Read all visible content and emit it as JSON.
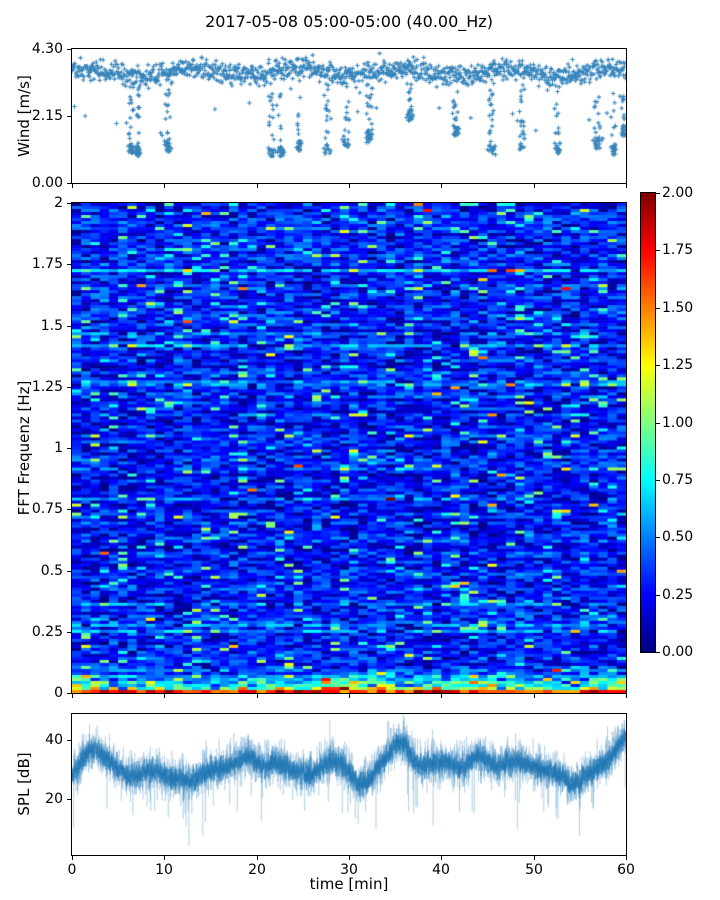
{
  "title": "2017-05-08 05:00-05:00 (40.00_Hz)",
  "xlabel": "time [min]",
  "xlim": [
    0,
    60
  ],
  "xticks": [
    0,
    10,
    20,
    30,
    40,
    50,
    60
  ],
  "xtick_labels": [
    "0",
    "10",
    "20",
    "30",
    "40",
    "50",
    "60"
  ],
  "accent_color": "#1f77b4",
  "spine_color": "#000000",
  "chart_data": [
    {
      "id": "wind",
      "type": "scatter",
      "ylabel": "Wind [m/s]",
      "ylim": [
        0.0,
        4.3
      ],
      "yticks": [
        0.0,
        2.15,
        4.3
      ],
      "ytick_labels": [
        "0.00",
        "2.15",
        "4.30"
      ],
      "marker": "+",
      "color": "#1f77b4",
      "band_mean": 3.55,
      "band_sd": 0.17,
      "band_wave_amp": 0.12,
      "points_per_min": 20,
      "straggler_prob": 0.035,
      "dips": [
        {
          "t": 6.4,
          "min": 0.95,
          "w": 0.45
        },
        {
          "t": 7.15,
          "min": 0.85,
          "w": 0.3
        },
        {
          "t": 10.4,
          "min": 1.0,
          "w": 0.4
        },
        {
          "t": 21.6,
          "min": 0.85,
          "w": 0.5
        },
        {
          "t": 22.6,
          "min": 0.8,
          "w": 0.45
        },
        {
          "t": 24.6,
          "min": 1.0,
          "w": 0.3
        },
        {
          "t": 27.6,
          "min": 0.9,
          "w": 0.35
        },
        {
          "t": 29.7,
          "min": 1.1,
          "w": 0.35
        },
        {
          "t": 32.3,
          "min": 1.3,
          "w": 0.4
        },
        {
          "t": 36.6,
          "min": 2.0,
          "w": 0.3
        },
        {
          "t": 41.6,
          "min": 1.5,
          "w": 0.35
        },
        {
          "t": 45.4,
          "min": 0.9,
          "w": 0.45
        },
        {
          "t": 48.7,
          "min": 1.0,
          "w": 0.35
        },
        {
          "t": 52.6,
          "min": 0.95,
          "w": 0.4
        },
        {
          "t": 56.9,
          "min": 1.1,
          "w": 0.5
        },
        {
          "t": 58.7,
          "min": 0.9,
          "w": 0.4
        },
        {
          "t": 59.7,
          "min": 1.5,
          "w": 0.3
        }
      ],
      "seed": 42
    },
    {
      "id": "spectrogram",
      "type": "heatmap",
      "ylabel": "FFT Frequenz [Hz]",
      "ylim": [
        0,
        2
      ],
      "yticks": [
        0,
        0.25,
        0.5,
        0.75,
        1,
        1.25,
        1.5,
        1.75,
        2
      ],
      "ytick_labels": [
        "0",
        "0.25",
        "0.5",
        "0.75",
        "1",
        "1.25",
        "1.5",
        "1.75",
        "2"
      ],
      "colormap": "jet",
      "vmin": 0.0,
      "vmax": 2.0,
      "cols": 60,
      "rows": 163,
      "base_level": 0.16,
      "noise_spread": 0.38,
      "bright_cell_prob": 0.08,
      "dark_cell_prob": 0.12,
      "low_freq_hot_below_hz": 0.1,
      "hot_time_bands": [
        [
          0,
          3
        ],
        [
          27,
          34
        ],
        [
          56,
          60
        ]
      ],
      "seed": 1234
    },
    {
      "id": "spl",
      "type": "line",
      "ylabel": "SPL [dB]",
      "ylim": [
        1,
        49
      ],
      "yticks": [
        20,
        40
      ],
      "ytick_labels": [
        "20",
        "40"
      ],
      "color": "#1f77b4",
      "envelope_t": [
        0,
        1,
        2,
        3,
        4,
        5,
        6,
        7,
        8,
        9,
        10,
        11,
        12,
        13,
        14,
        15,
        16,
        17,
        18,
        19,
        20,
        21,
        22,
        23,
        24,
        25,
        26,
        27,
        28,
        29,
        30,
        31,
        32,
        33,
        34,
        35,
        36,
        37,
        38,
        39,
        40,
        41,
        42,
        43,
        44,
        45,
        46,
        47,
        48,
        49,
        50,
        51,
        52,
        53,
        54,
        55,
        56,
        57,
        58,
        59,
        60
      ],
      "envelope_db": [
        28,
        33,
        37,
        36,
        33,
        30,
        28,
        28,
        29,
        30,
        28,
        27,
        27,
        26,
        28,
        30,
        30,
        31,
        33,
        35,
        33,
        31,
        33,
        31,
        30,
        29,
        28,
        31,
        33,
        32,
        29,
        25,
        26,
        30,
        34,
        39,
        39,
        33,
        31,
        32,
        33,
        32,
        30,
        33,
        35,
        33,
        31,
        32,
        33,
        32,
        31,
        30,
        29,
        28,
        25,
        26,
        29,
        31,
        33,
        37,
        42
      ],
      "noise_sd": 3.4,
      "seed": 99
    }
  ],
  "colorbar": {
    "colormap": "jet",
    "vmin": 0.0,
    "vmax": 2.0,
    "ticks": [
      0,
      0.25,
      0.5,
      0.75,
      1,
      1.25,
      1.5,
      1.75,
      2
    ],
    "tick_labels": [
      "0.00",
      "0.25",
      "0.50",
      "0.75",
      "1.00",
      "1.25",
      "1.50",
      "1.75",
      "2.00"
    ]
  }
}
